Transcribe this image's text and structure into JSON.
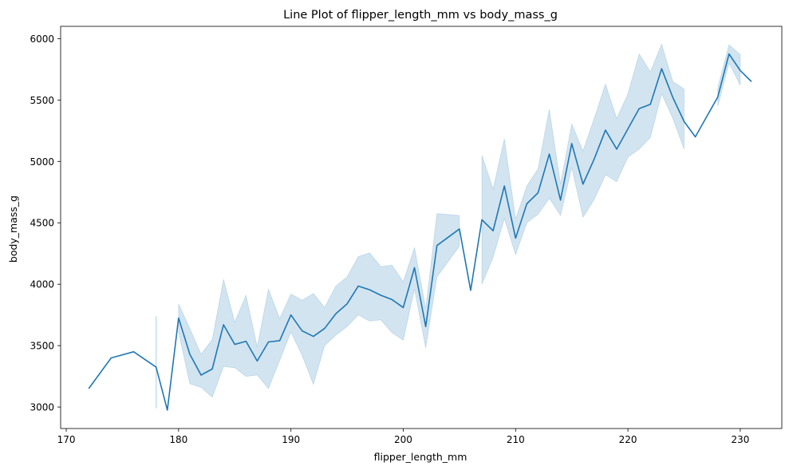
{
  "chart_data": {
    "type": "line",
    "title": "Line Plot of flipper_length_mm vs body_mass_g",
    "xlabel": "flipper_length_mm",
    "ylabel": "body_mass_g",
    "xlim": [
      169.5,
      233.7
    ],
    "ylim": [
      2825,
      6100
    ],
    "x_ticks": [
      170,
      180,
      190,
      200,
      210,
      220,
      230
    ],
    "y_ticks": [
      3000,
      3500,
      4000,
      4500,
      5000,
      5500,
      6000
    ],
    "grid": false,
    "legend": "none",
    "series": [
      {
        "color": "#1f77b4",
        "band_color": "#1f77b4",
        "band_opacity": 0.2,
        "points": [
          {
            "x": 172,
            "y": 3150
          },
          {
            "x": 174,
            "y": 3400
          },
          {
            "x": 176,
            "y": 3450
          },
          {
            "x": 178,
            "y": 3325,
            "lo": 2990,
            "hi": 3740
          },
          {
            "x": 179,
            "y": 2975
          },
          {
            "x": 180,
            "y": 3725,
            "lo": 3610,
            "hi": 3840
          },
          {
            "x": 181,
            "y": 3430,
            "lo": 3190,
            "hi": 3640
          },
          {
            "x": 182,
            "y": 3260,
            "lo": 3160,
            "hi": 3430
          },
          {
            "x": 183,
            "y": 3310,
            "lo": 3080,
            "hi": 3550
          },
          {
            "x": 184,
            "y": 3670,
            "lo": 3330,
            "hi": 4040
          },
          {
            "x": 185,
            "y": 3510,
            "lo": 3320,
            "hi": 3690
          },
          {
            "x": 186,
            "y": 3535,
            "lo": 3250,
            "hi": 3910
          },
          {
            "x": 187,
            "y": 3375,
            "lo": 3260,
            "hi": 3490
          },
          {
            "x": 188,
            "y": 3530,
            "lo": 3150,
            "hi": 3960
          },
          {
            "x": 189,
            "y": 3540,
            "lo": 3380,
            "hi": 3720
          },
          {
            "x": 190,
            "y": 3750,
            "lo": 3610,
            "hi": 3920
          },
          {
            "x": 191,
            "y": 3620,
            "lo": 3420,
            "hi": 3870
          },
          {
            "x": 192,
            "y": 3575,
            "lo": 3185,
            "hi": 3925
          },
          {
            "x": 193,
            "y": 3640,
            "lo": 3500,
            "hi": 3810
          },
          {
            "x": 194,
            "y": 3760,
            "lo": 3585,
            "hi": 3985
          },
          {
            "x": 195,
            "y": 3840,
            "lo": 3655,
            "hi": 4060
          },
          {
            "x": 196,
            "y": 3985,
            "lo": 3750,
            "hi": 4225
          },
          {
            "x": 197,
            "y": 3955,
            "lo": 3700,
            "hi": 4255
          },
          {
            "x": 198,
            "y": 3910,
            "lo": 3710,
            "hi": 4145
          },
          {
            "x": 199,
            "y": 3875,
            "lo": 3605,
            "hi": 4155
          },
          {
            "x": 200,
            "y": 3810,
            "lo": 3545,
            "hi": 4020
          },
          {
            "x": 201,
            "y": 4135,
            "lo": 3960,
            "hi": 4300
          },
          {
            "x": 202,
            "y": 3655,
            "lo": 3480,
            "hi": 3800
          },
          {
            "x": 203,
            "y": 4315,
            "lo": 4060,
            "hi": 4575
          },
          {
            "x": 205,
            "y": 4450,
            "lo": 4310,
            "hi": 4560
          },
          {
            "x": 206,
            "y": 3950
          },
          {
            "x": 207,
            "y": 4525,
            "lo": 4000,
            "hi": 5050
          },
          {
            "x": 208,
            "y": 4435,
            "lo": 4220,
            "hi": 4775
          },
          {
            "x": 209,
            "y": 4800,
            "lo": 4535,
            "hi": 5185
          },
          {
            "x": 210,
            "y": 4375,
            "lo": 4240,
            "hi": 4530
          },
          {
            "x": 211,
            "y": 4655,
            "lo": 4500,
            "hi": 4800
          },
          {
            "x": 212,
            "y": 4745,
            "lo": 4570,
            "hi": 4940
          },
          {
            "x": 213,
            "y": 5060,
            "lo": 4700,
            "hi": 5425
          },
          {
            "x": 214,
            "y": 4685,
            "lo": 4560,
            "hi": 4815
          },
          {
            "x": 215,
            "y": 5145,
            "lo": 4950,
            "hi": 5305
          },
          {
            "x": 216,
            "y": 4815,
            "lo": 4545,
            "hi": 5085
          },
          {
            "x": 217,
            "y": 5020,
            "lo": 4690,
            "hi": 5350
          },
          {
            "x": 218,
            "y": 5255,
            "lo": 4890,
            "hi": 5630
          },
          {
            "x": 219,
            "y": 5100,
            "lo": 4835,
            "hi": 5350
          },
          {
            "x": 220,
            "y": 5265,
            "lo": 5035,
            "hi": 5550
          },
          {
            "x": 221,
            "y": 5430,
            "lo": 5100,
            "hi": 5875
          },
          {
            "x": 222,
            "y": 5465,
            "lo": 5195,
            "hi": 5730
          },
          {
            "x": 223,
            "y": 5755,
            "lo": 5550,
            "hi": 5955
          },
          {
            "x": 224,
            "y": 5520,
            "lo": 5350,
            "hi": 5650
          },
          {
            "x": 225,
            "y": 5325,
            "lo": 5100,
            "hi": 5590
          },
          {
            "x": 226,
            "y": 5200
          },
          {
            "x": 228,
            "y": 5525,
            "lo": 5450,
            "hi": 5600
          },
          {
            "x": 229,
            "y": 5875,
            "lo": 5800,
            "hi": 5950
          },
          {
            "x": 230,
            "y": 5740,
            "lo": 5620,
            "hi": 5870
          },
          {
            "x": 231,
            "y": 5650
          }
        ]
      }
    ]
  }
}
